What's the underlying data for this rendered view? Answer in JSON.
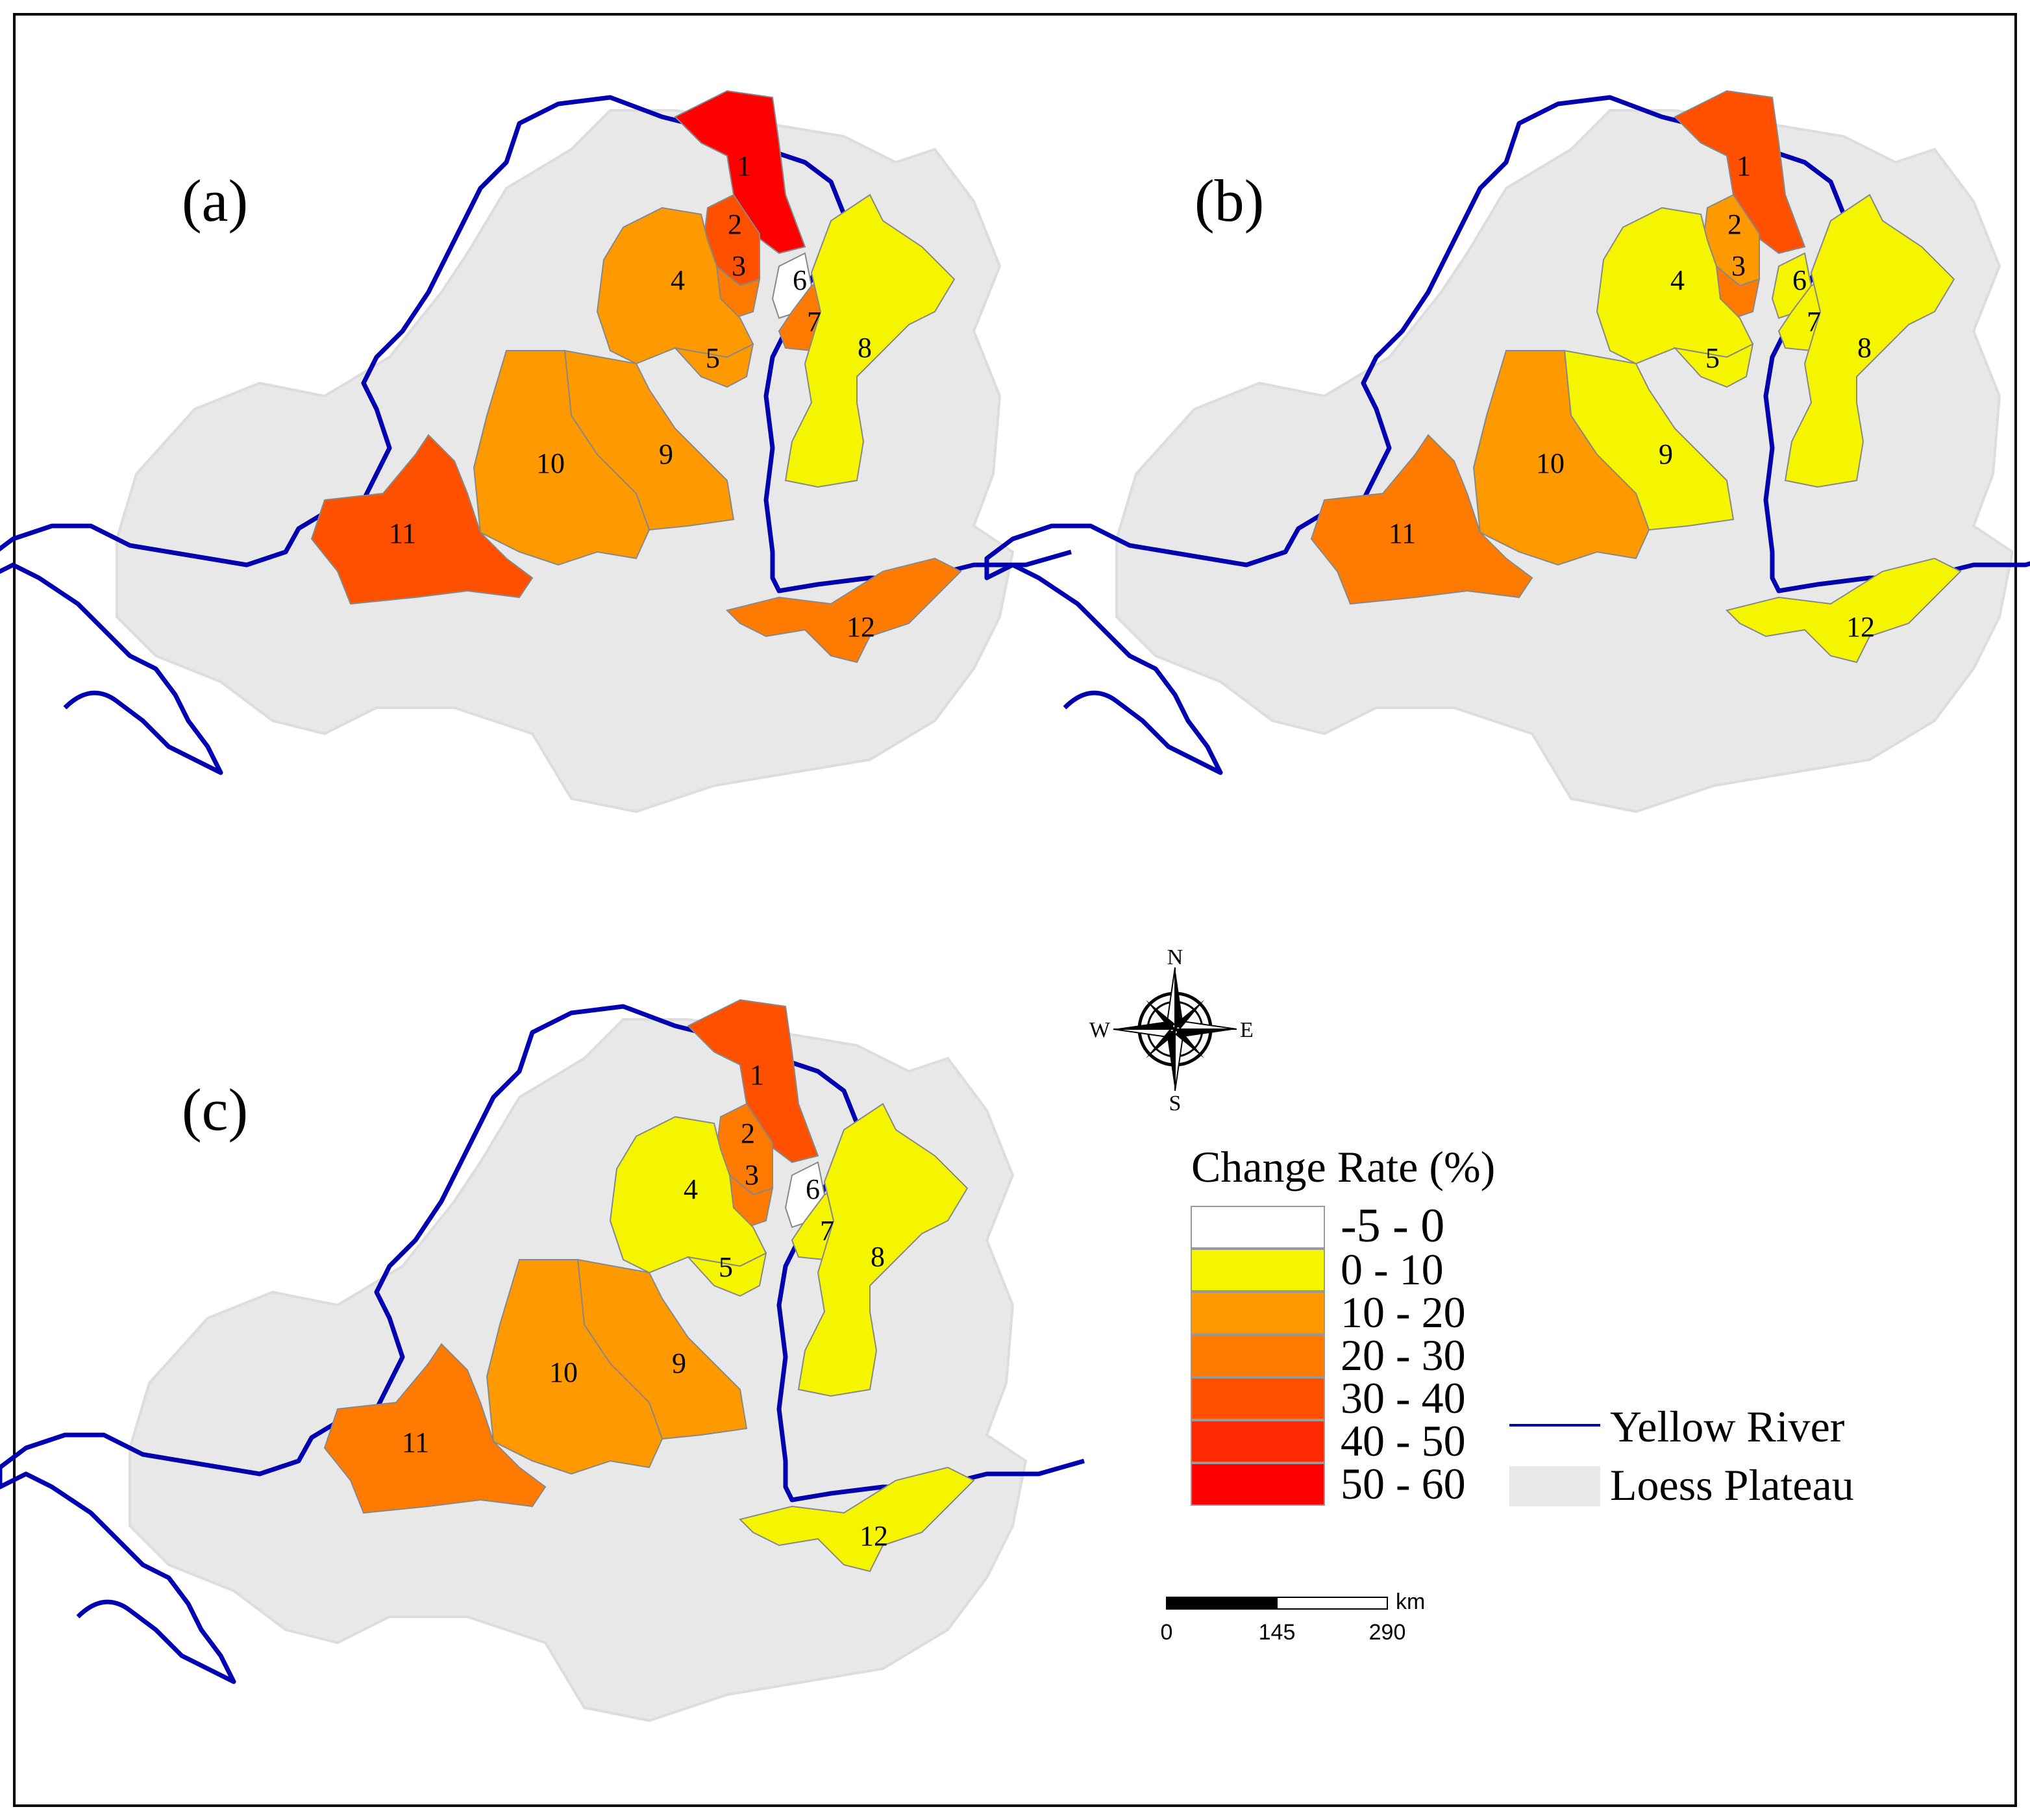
{
  "panels": [
    {
      "id": "a",
      "label": "(a)",
      "basin_classes": {
        "1": "50 - 60",
        "2": "30 - 40",
        "3": "20 - 30",
        "4": "10 - 20",
        "5": "10 - 20",
        "6": "-5 - 0",
        "7": "20 - 30",
        "8": "0 - 10",
        "9": "10 - 20",
        "10": "10 - 20",
        "11": "30 - 40",
        "12": "20 - 30"
      }
    },
    {
      "id": "b",
      "label": "(b)",
      "basin_classes": {
        "1": "30 - 40",
        "2": "10 - 20",
        "3": "20 - 30",
        "4": "0 - 10",
        "5": "0 - 10",
        "6": "0 - 10",
        "7": "0 - 10",
        "8": "0 - 10",
        "9": "0 - 10",
        "10": "10 - 20",
        "11": "20 - 30",
        "12": "0 - 10"
      }
    },
    {
      "id": "c",
      "label": "(c)",
      "basin_classes": {
        "1": "30 - 40",
        "2": "20 - 30",
        "3": "20 - 30",
        "4": "0 - 10",
        "5": "0 - 10",
        "6": "-5 - 0",
        "7": "0 - 10",
        "8": "0 - 10",
        "9": "10 - 20",
        "10": "10 - 20",
        "11": "20 - 30",
        "12": "0 - 10"
      }
    }
  ],
  "basin_numbers": [
    "1",
    "2",
    "3",
    "4",
    "5",
    "6",
    "7",
    "8",
    "9",
    "10",
    "11",
    "12"
  ],
  "legend": {
    "title": "Change Rate (%)",
    "classes": [
      {
        "label": "-5 - 0",
        "color": "#ffffff"
      },
      {
        "label": " 0 - 10",
        "color": "#f5f500"
      },
      {
        "label": "10 - 20",
        "color": "#ff9900"
      },
      {
        "label": "20 - 30",
        "color": "#ff7a00"
      },
      {
        "label": "30 - 40",
        "color": "#ff5000"
      },
      {
        "label": "40 - 50",
        "color": "#ff2800"
      },
      {
        "label": "50 - 60",
        "color": "#ff0000"
      }
    ],
    "river_label": "Yellow River",
    "river_color": "#0000b0",
    "plateau_label": "Loess Plateau",
    "plateau_color": "#e8e8e8"
  },
  "compass": {
    "n": "N",
    "s": "S",
    "e": "E",
    "w": "W"
  },
  "scale_bar": {
    "ticks": [
      "0",
      "145",
      "290"
    ],
    "unit": "km"
  }
}
